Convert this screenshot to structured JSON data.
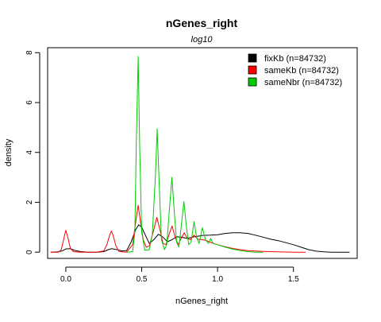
{
  "chart_data": {
    "type": "line",
    "title": "nGenes_right",
    "subtitle": "log10",
    "xlabel": "nGenes_right",
    "ylabel": "density",
    "xlim": [
      -0.12,
      1.92
    ],
    "ylim": [
      -0.25,
      8.2
    ],
    "xticks": [
      0.0,
      0.5,
      1.0,
      1.5
    ],
    "xtick_labels": [
      "0.0",
      "0.5",
      "1.0",
      "1.5"
    ],
    "yticks": [
      0,
      2,
      4,
      6,
      8
    ],
    "ytick_labels": [
      "0",
      "2",
      "4",
      "6",
      "8"
    ],
    "grid": false,
    "legend_position": "top-right",
    "series": [
      {
        "name": "fixKb (n=84732)",
        "color": "#000000",
        "points": [
          [
            -0.1,
            0.0
          ],
          [
            -0.05,
            0.01
          ],
          [
            -0.02,
            0.06
          ],
          [
            0.0,
            0.13
          ],
          [
            0.03,
            0.14
          ],
          [
            0.06,
            0.07
          ],
          [
            0.1,
            0.02
          ],
          [
            0.15,
            0.0
          ],
          [
            0.2,
            0.0
          ],
          [
            0.25,
            0.02
          ],
          [
            0.28,
            0.1
          ],
          [
            0.3,
            0.14
          ],
          [
            0.33,
            0.11
          ],
          [
            0.37,
            0.05
          ],
          [
            0.4,
            0.06
          ],
          [
            0.43,
            0.4
          ],
          [
            0.46,
            0.9
          ],
          [
            0.48,
            1.1
          ],
          [
            0.5,
            1.0
          ],
          [
            0.53,
            0.6
          ],
          [
            0.55,
            0.35
          ],
          [
            0.58,
            0.5
          ],
          [
            0.61,
            0.72
          ],
          [
            0.64,
            0.6
          ],
          [
            0.67,
            0.42
          ],
          [
            0.7,
            0.5
          ],
          [
            0.73,
            0.62
          ],
          [
            0.76,
            0.6
          ],
          [
            0.8,
            0.55
          ],
          [
            0.85,
            0.62
          ],
          [
            0.9,
            0.67
          ],
          [
            0.95,
            0.68
          ],
          [
            1.0,
            0.7
          ],
          [
            1.05,
            0.75
          ],
          [
            1.1,
            0.78
          ],
          [
            1.15,
            0.78
          ],
          [
            1.2,
            0.75
          ],
          [
            1.25,
            0.68
          ],
          [
            1.3,
            0.6
          ],
          [
            1.35,
            0.52
          ],
          [
            1.4,
            0.46
          ],
          [
            1.45,
            0.38
          ],
          [
            1.5,
            0.3
          ],
          [
            1.55,
            0.2
          ],
          [
            1.6,
            0.1
          ],
          [
            1.65,
            0.04
          ],
          [
            1.7,
            0.01
          ],
          [
            1.75,
            0.0
          ],
          [
            1.87,
            0.0
          ]
        ]
      },
      {
        "name": "sameKb (n=84732)",
        "color": "#ff0000",
        "points": [
          [
            -0.1,
            0.0
          ],
          [
            -0.05,
            0.0
          ],
          [
            -0.03,
            0.1
          ],
          [
            -0.015,
            0.5
          ],
          [
            0.0,
            0.88
          ],
          [
            0.015,
            0.55
          ],
          [
            0.03,
            0.15
          ],
          [
            0.05,
            0.02
          ],
          [
            0.1,
            0.0
          ],
          [
            0.2,
            0.0
          ],
          [
            0.25,
            0.05
          ],
          [
            0.27,
            0.3
          ],
          [
            0.29,
            0.7
          ],
          [
            0.3,
            0.85
          ],
          [
            0.31,
            0.7
          ],
          [
            0.33,
            0.25
          ],
          [
            0.35,
            0.03
          ],
          [
            0.4,
            0.0
          ],
          [
            0.44,
            0.3
          ],
          [
            0.46,
            1.2
          ],
          [
            0.477,
            1.88
          ],
          [
            0.49,
            1.3
          ],
          [
            0.51,
            0.5
          ],
          [
            0.53,
            0.2
          ],
          [
            0.55,
            0.25
          ],
          [
            0.58,
            0.9
          ],
          [
            0.6,
            1.4
          ],
          [
            0.62,
            0.9
          ],
          [
            0.64,
            0.35
          ],
          [
            0.66,
            0.3
          ],
          [
            0.68,
            0.7
          ],
          [
            0.7,
            1.05
          ],
          [
            0.72,
            0.6
          ],
          [
            0.74,
            0.3
          ],
          [
            0.76,
            0.55
          ],
          [
            0.78,
            0.78
          ],
          [
            0.8,
            0.55
          ],
          [
            0.82,
            0.5
          ],
          [
            0.845,
            0.68
          ],
          [
            0.87,
            0.52
          ],
          [
            0.9,
            0.5
          ],
          [
            0.92,
            0.48
          ],
          [
            0.95,
            0.4
          ],
          [
            1.0,
            0.3
          ],
          [
            1.05,
            0.22
          ],
          [
            1.1,
            0.15
          ],
          [
            1.15,
            0.1
          ],
          [
            1.2,
            0.06
          ],
          [
            1.3,
            0.03
          ],
          [
            1.4,
            0.01
          ],
          [
            1.5,
            0.0
          ],
          [
            1.58,
            0.0
          ]
        ]
      },
      {
        "name": "sameNbr (n=84732)",
        "color": "#00cc00",
        "points": [
          [
            0.4,
            0.0
          ],
          [
            0.44,
            0.02
          ],
          [
            0.455,
            0.8
          ],
          [
            0.465,
            4.5
          ],
          [
            0.477,
            7.85
          ],
          [
            0.487,
            4.2
          ],
          [
            0.5,
            0.8
          ],
          [
            0.52,
            0.08
          ],
          [
            0.55,
            0.1
          ],
          [
            0.57,
            0.7
          ],
          [
            0.59,
            3.0
          ],
          [
            0.602,
            4.95
          ],
          [
            0.615,
            2.8
          ],
          [
            0.63,
            0.5
          ],
          [
            0.65,
            0.1
          ],
          [
            0.665,
            0.3
          ],
          [
            0.68,
            1.5
          ],
          [
            0.699,
            3.0
          ],
          [
            0.715,
            1.6
          ],
          [
            0.73,
            0.4
          ],
          [
            0.745,
            0.2
          ],
          [
            0.76,
            1.0
          ],
          [
            0.778,
            2.03
          ],
          [
            0.795,
            1.0
          ],
          [
            0.81,
            0.3
          ],
          [
            0.825,
            0.4
          ],
          [
            0.845,
            1.22
          ],
          [
            0.862,
            0.6
          ],
          [
            0.878,
            0.35
          ],
          [
            0.9,
            0.98
          ],
          [
            0.92,
            0.5
          ],
          [
            0.94,
            0.35
          ],
          [
            0.955,
            0.55
          ],
          [
            0.97,
            0.35
          ],
          [
            1.0,
            0.3
          ],
          [
            1.05,
            0.2
          ],
          [
            1.1,
            0.12
          ],
          [
            1.15,
            0.06
          ],
          [
            1.2,
            0.02
          ],
          [
            1.25,
            0.0
          ],
          [
            1.3,
            0.0
          ]
        ]
      }
    ]
  }
}
